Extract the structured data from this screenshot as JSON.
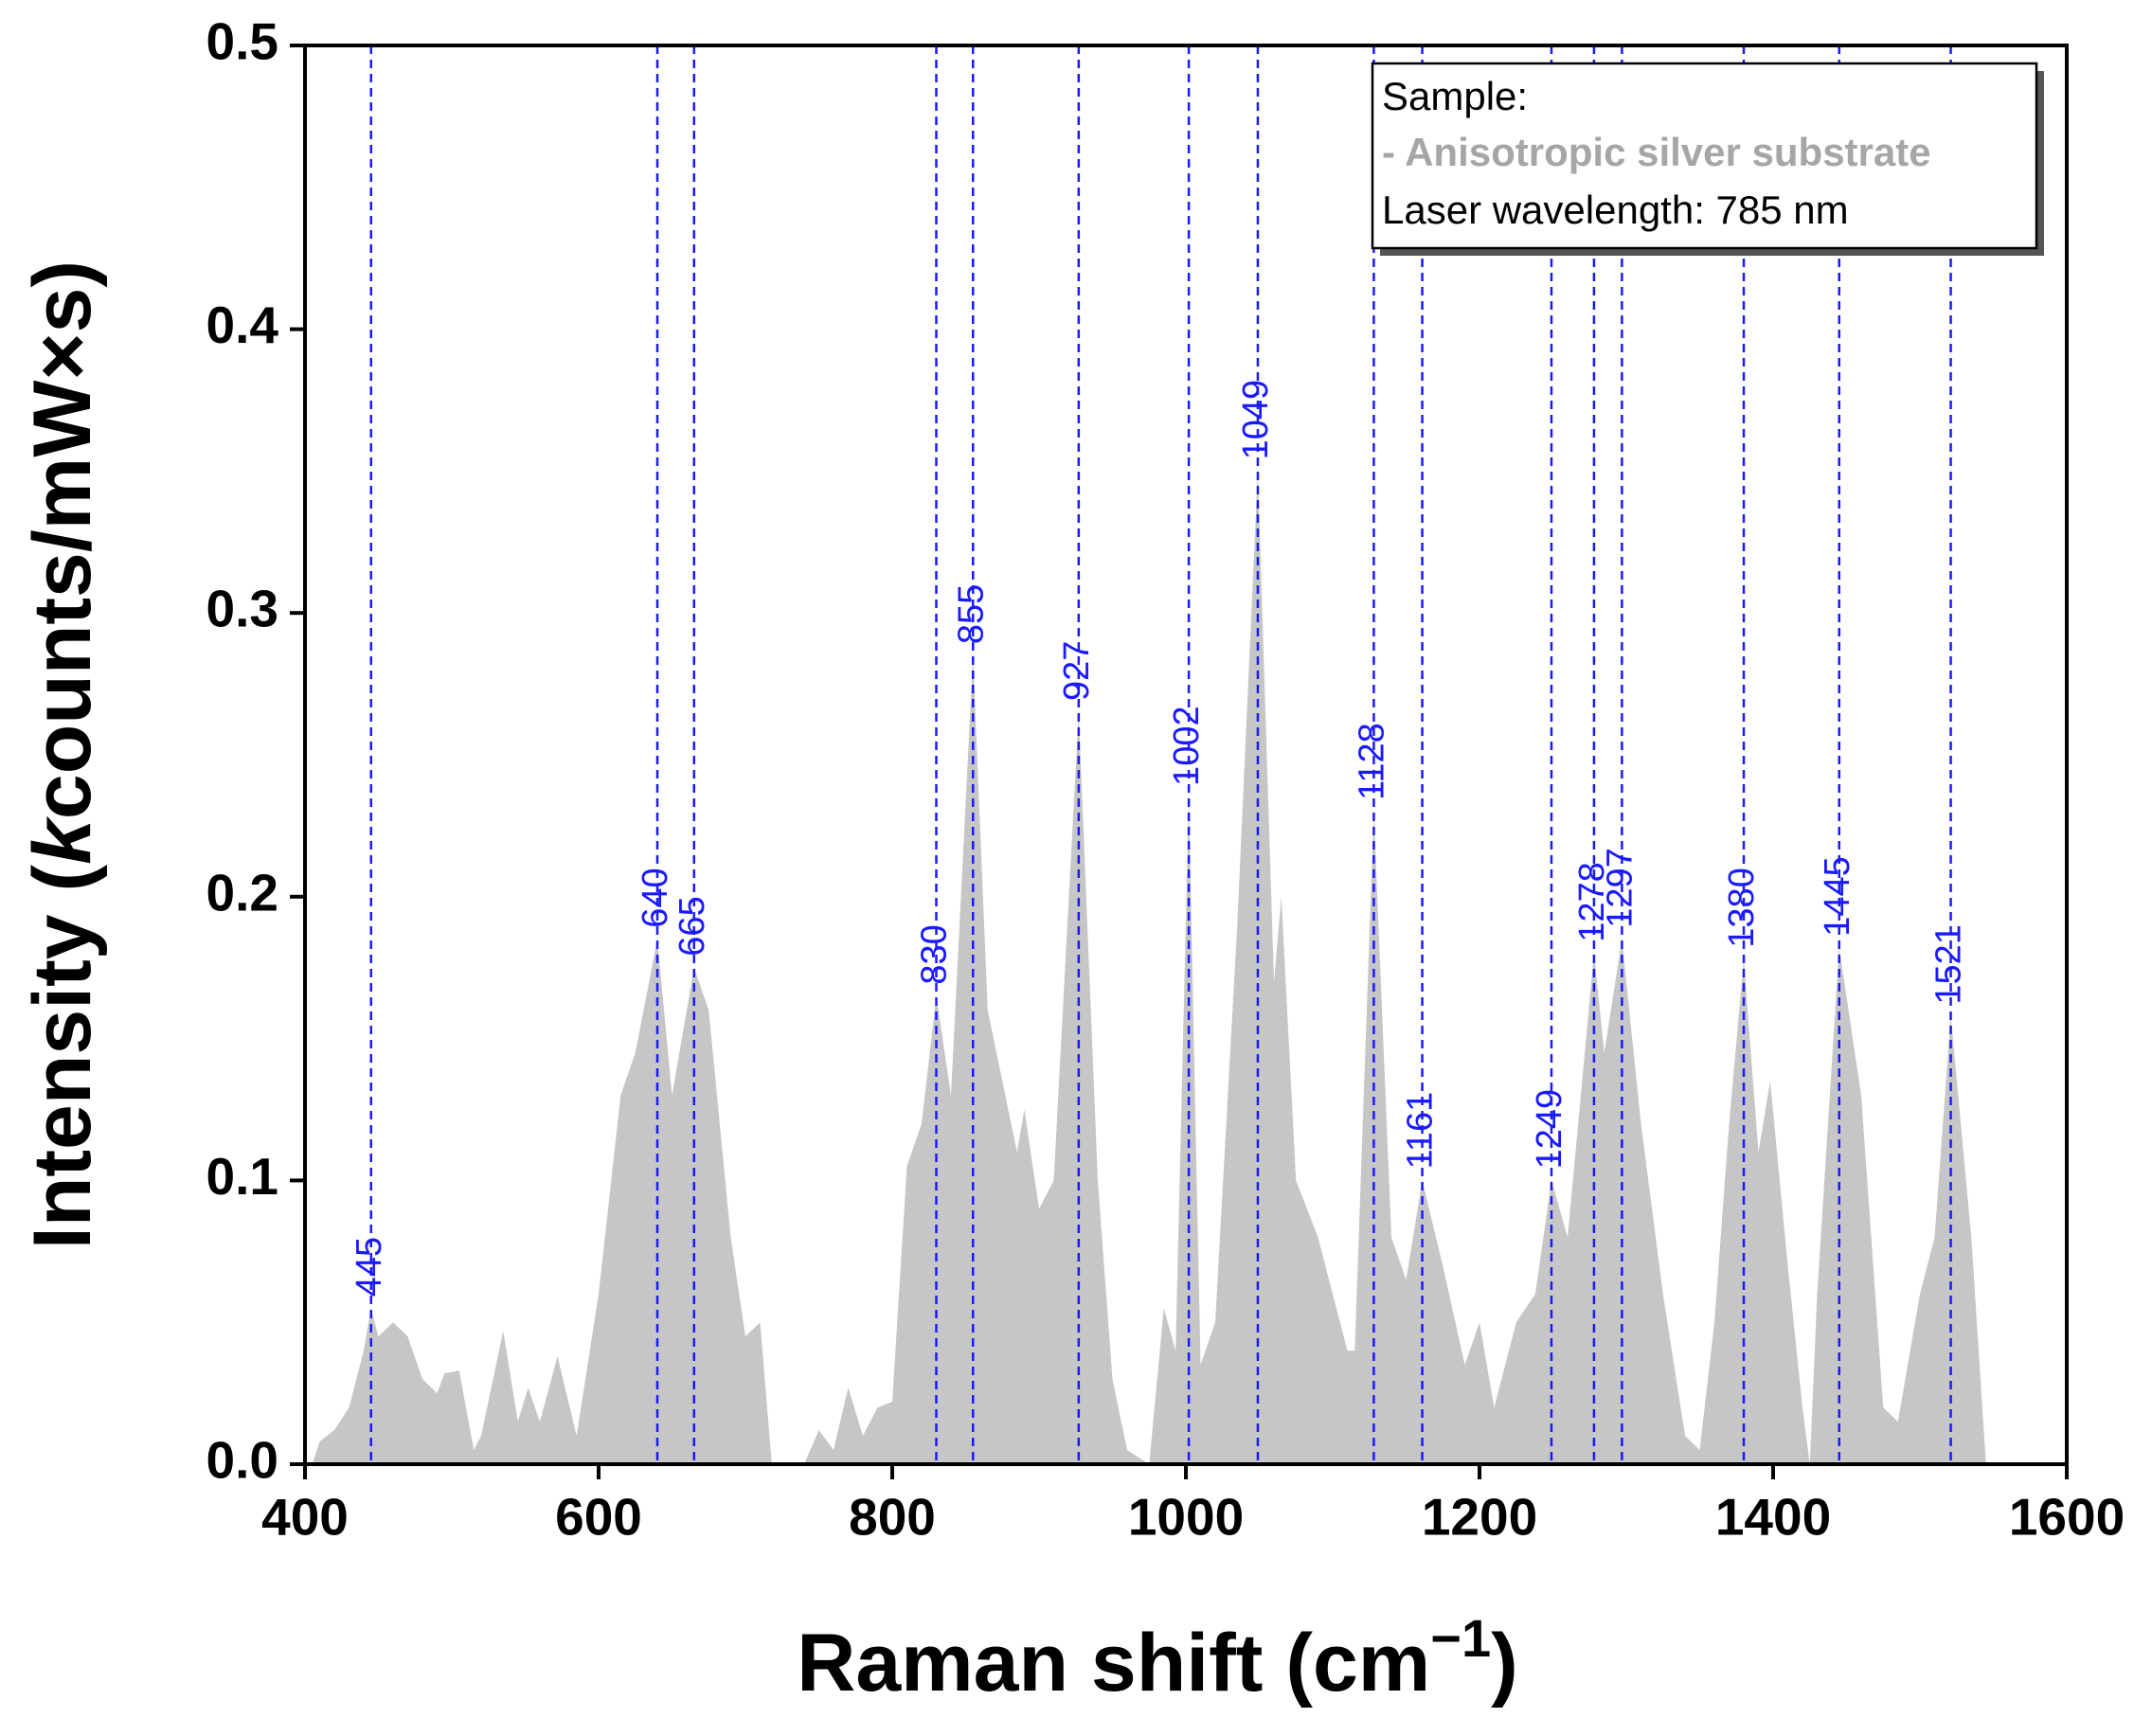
{
  "chart_data": {
    "type": "area",
    "xlabel": [
      "Raman shift (cm",
      "−1",
      ")"
    ],
    "ylabel": [
      "Intensity (",
      "k",
      "counts/mW×s)"
    ],
    "xlim": [
      400,
      1600
    ],
    "xticks": [
      400,
      600,
      800,
      1000,
      1200,
      1400,
      1600
    ],
    "ylim": [
      0,
      0.5
    ],
    "yticks": [
      {
        "value": 0,
        "label": "0.0"
      },
      0.1,
      0.2,
      0.3,
      0.4,
      0.5
    ],
    "x": [
      405,
      410,
      420,
      430,
      440,
      445,
      450,
      460,
      470,
      480,
      490,
      495,
      505,
      515,
      520,
      535,
      545,
      552,
      560,
      572,
      585,
      600,
      615,
      625,
      640,
      650,
      665,
      675,
      690,
      700,
      710,
      718,
      740,
      750,
      760,
      770,
      780,
      790,
      800,
      810,
      820,
      830,
      840,
      855,
      865,
      875,
      885,
      890,
      900,
      910,
      927,
      940,
      950,
      960,
      975,
      985,
      993,
      1002,
      1010,
      1020,
      1035,
      1049,
      1060,
      1065,
      1075,
      1090,
      1100,
      1110,
      1115,
      1128,
      1140,
      1150,
      1161,
      1175,
      1190,
      1200,
      1210,
      1225,
      1238,
      1249,
      1260,
      1278,
      1285,
      1297,
      1310,
      1325,
      1340,
      1350,
      1360,
      1370,
      1380,
      1390,
      1398,
      1410,
      1420,
      1425,
      1430,
      1445,
      1460,
      1475,
      1485,
      1500,
      1510,
      1521,
      1535,
      1545
    ],
    "series": [
      {
        "name": "- Anisotropic silver substrate",
        "color": "#c6c6c6",
        "values": [
          0,
          0.008,
          0.012,
          0.02,
          0.04,
          0.055,
          0.045,
          0.05,
          0.045,
          0.03,
          0.025,
          0.032,
          0.033,
          0.005,
          0.01,
          0.047,
          0.015,
          0.027,
          0.015,
          0.038,
          0.01,
          0.06,
          0.13,
          0.145,
          0.185,
          0.13,
          0.175,
          0.16,
          0.08,
          0.045,
          0.05,
          0,
          0,
          0.012,
          0.005,
          0.027,
          0.01,
          0.02,
          0.022,
          0.105,
          0.12,
          0.165,
          0.13,
          0.285,
          0.16,
          0.135,
          0.11,
          0.125,
          0.09,
          0.1,
          0.265,
          0.1,
          0.03,
          0.005,
          0,
          0.055,
          0.04,
          0.235,
          0.035,
          0.05,
          0.19,
          0.35,
          0.17,
          0.2,
          0.1,
          0.08,
          0.06,
          0.04,
          0.04,
          0.23,
          0.08,
          0.065,
          0.1,
          0.07,
          0.035,
          0.05,
          0.02,
          0.05,
          0.06,
          0.1,
          0.08,
          0.18,
          0.145,
          0.185,
          0.12,
          0.06,
          0.01,
          0.005,
          0.05,
          0.12,
          0.178,
          0.11,
          0.135,
          0.07,
          0.02,
          0,
          0.06,
          0.182,
          0.13,
          0.02,
          0.015,
          0.06,
          0.08,
          0.158,
          0.08,
          0
        ]
      }
    ],
    "peaks": [
      445,
      640,
      665,
      830,
      855,
      927,
      1002,
      1049,
      1128,
      1161,
      1249,
      1278,
      1297,
      1380,
      1445,
      1521
    ],
    "peak_color": "#1a1aff",
    "annotations": [
      "Sample:",
      "Laser wavelength: 785 nm"
    ]
  }
}
